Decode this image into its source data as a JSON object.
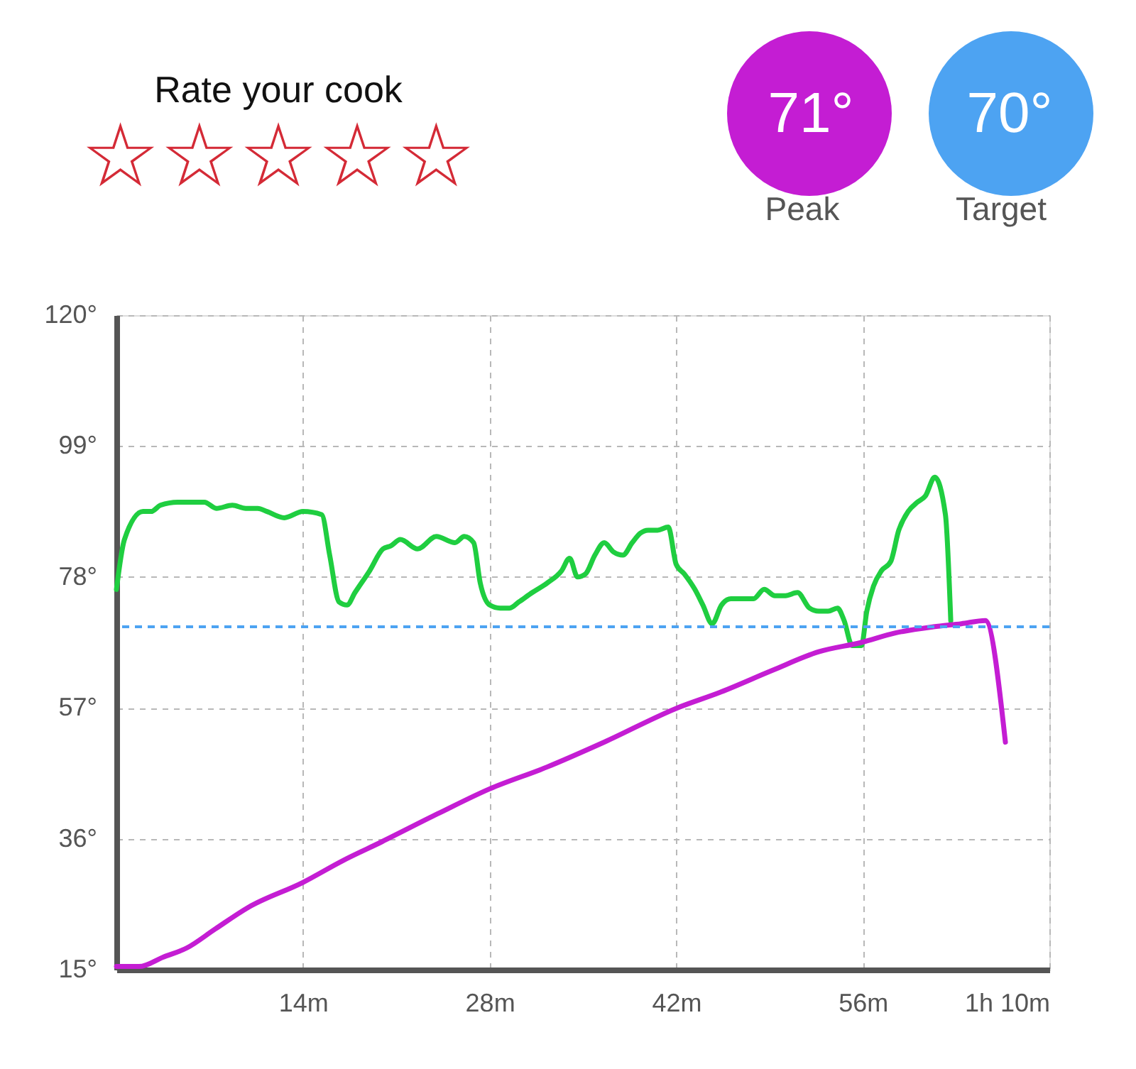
{
  "chart_data": {
    "type": "line",
    "annotations": [
      "Rate your cook",
      "☆☆☆☆☆",
      "71°",
      "Peak",
      "70°",
      "Target"
    ],
    "series": [
      {
        "color": "#1fce40",
        "x": [
          0,
          0.6,
          2.0,
          2.6,
          3.3,
          4.6,
          5.8,
          6.6,
          7.5,
          8.7,
          9.7,
          10.6,
          11.3,
          12.6,
          14.0,
          15.4,
          16.0,
          16.7,
          17.3,
          17.9,
          19.0,
          20.0,
          20.6,
          21.3,
          22.6,
          24.0,
          25.4,
          26.1,
          26.8,
          27.3,
          28.0,
          28.8,
          29.5,
          30.2,
          31.2,
          32.3,
          33.4,
          34.0,
          34.6,
          35.2,
          35.9,
          36.6,
          37.3,
          38.0,
          38.7,
          39.3,
          39.9,
          40.6,
          41.4,
          42.0,
          42.6,
          43.4,
          44.0,
          44.7,
          45.4,
          46.1,
          47.8,
          48.6,
          49.4,
          50.2,
          51.1,
          52.0,
          52.7,
          53.4,
          54.1,
          54.6,
          55.2,
          55.9,
          56.3,
          56.8,
          57.4,
          58.1,
          58.7,
          59.4,
          60.1,
          60.7,
          61.4,
          62.2,
          62.6
        ],
        "values": [
          76,
          84,
          88.5,
          88.5,
          89.5,
          90,
          90,
          90,
          89,
          89.5,
          89,
          89,
          88.5,
          87.5,
          88.5,
          88,
          81.5,
          74,
          73.5,
          75.5,
          79,
          82.5,
          83,
          84,
          82.5,
          84.5,
          83.5,
          84.5,
          83.5,
          77,
          73.5,
          73,
          73,
          74,
          75.5,
          77,
          79,
          81,
          78,
          78.5,
          81.5,
          83.5,
          82,
          81.5,
          83.5,
          85,
          85.5,
          85.5,
          86,
          80,
          78.5,
          76,
          73.5,
          70.5,
          73.5,
          74.5,
          74.5,
          76,
          75,
          75,
          75.5,
          73,
          72.5,
          72.5,
          73,
          71,
          67,
          67,
          72.5,
          76.5,
          79,
          80.5,
          85.5,
          88.5,
          90,
          91,
          94,
          88,
          71
        ]
      },
      {
        "color": "#c41dd3",
        "x": [
          0,
          1.7,
          3.5,
          5.3,
          7.4,
          9.9,
          14.0,
          17.0,
          19.9,
          24.1,
          28.0,
          32.3,
          36.6,
          42.1,
          45.3,
          49.2,
          52.7,
          55.9,
          58.4,
          61.3,
          63.4,
          65.2,
          66.7
        ],
        "values": [
          15.5,
          15.5,
          17,
          18.5,
          21.5,
          25,
          29,
          32.5,
          35.5,
          40,
          44,
          47.5,
          51.5,
          57,
          59.5,
          63,
          66,
          67.5,
          69,
          70,
          70.5,
          71,
          51.5
        ]
      }
    ],
    "xlim": [
      0,
      70
    ],
    "xticks": [
      {
        "value": 14,
        "label": "14m"
      },
      {
        "value": 28,
        "label": "28m"
      },
      {
        "value": 42,
        "label": "42m"
      },
      {
        "value": 56,
        "label": "56m"
      },
      {
        "value": 70,
        "label": "1h 10m"
      }
    ],
    "ylim": [
      15,
      120
    ],
    "yticks": [
      {
        "value": 15,
        "label": "15°"
      },
      {
        "value": 36,
        "label": "36°"
      },
      {
        "value": 57,
        "label": "57°"
      },
      {
        "value": 78,
        "label": "78°"
      },
      {
        "value": 99,
        "label": "99°"
      },
      {
        "value": 120,
        "label": "120°"
      }
    ],
    "grid": true,
    "ref_lines": [
      {
        "axis": "y",
        "value": 70,
        "color": "#4da3f2",
        "line_style": "dashed"
      }
    ]
  }
}
